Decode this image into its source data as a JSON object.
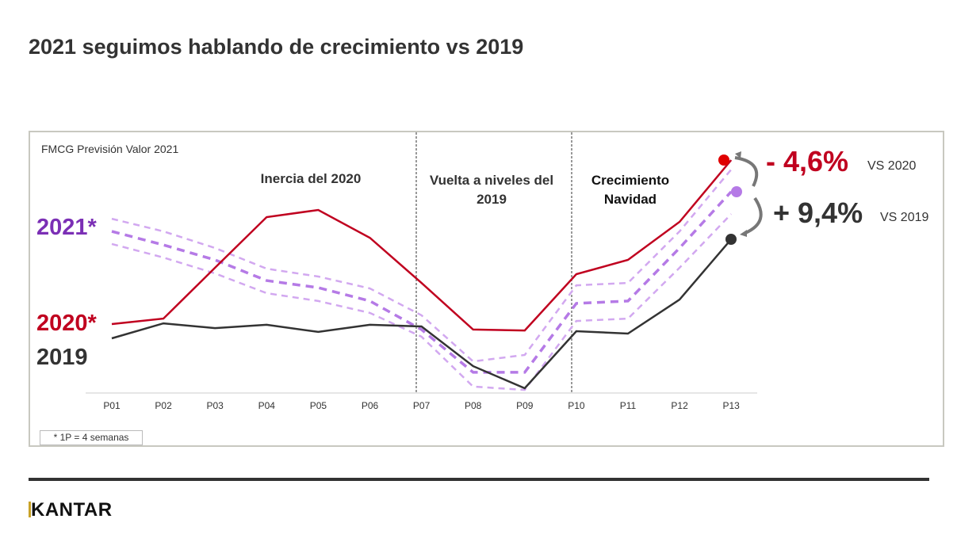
{
  "title": "2021 seguimos hablando de crecimiento vs 2019",
  "footer": {
    "note": "* 1P = 4 semanas",
    "logo": "KANTAR"
  },
  "sections": [
    "Inercia del 2020",
    "Vuelta a niveles del 2019",
    "Crecimiento Navidad"
  ],
  "annotations": {
    "vs2020_value": "- 4,6%",
    "vs2020_label": "VS 2020",
    "vs2019_value": "+ 9,4%",
    "vs2019_label": "VS 2019"
  },
  "colors": {
    "2020": "#c0001f",
    "2019": "#333333",
    "2021": "#b57ae6",
    "2021_label": "#7b2fb5",
    "dot2020": "#e00000"
  },
  "chart_data": {
    "type": "line",
    "title": "FMCG Previsión Valor 2021",
    "categories": [
      "P01",
      "P02",
      "P03",
      "P04",
      "P05",
      "P06",
      "P07",
      "P08",
      "P09",
      "P10",
      "P11",
      "P12",
      "P13"
    ],
    "ylim": [
      0,
      100
    ],
    "grid": false,
    "series": [
      {
        "name": "2020*",
        "style": "solid",
        "values": [
          29,
          31.3,
          52.7,
          74,
          77,
          65.3,
          46.3,
          26.7,
          26.3,
          50,
          56,
          72,
          98
        ]
      },
      {
        "name": "2019",
        "style": "solid",
        "values": [
          23,
          29.3,
          27.3,
          28.7,
          25.7,
          28.7,
          28,
          11.3,
          2,
          26,
          25,
          39.3,
          64.7
        ]
      },
      {
        "name": "2021*",
        "style": "dashed",
        "values": [
          68,
          62.3,
          56,
          47.3,
          44.3,
          38.7,
          26.7,
          8.7,
          8.7,
          37.7,
          38.7,
          61,
          84.7
        ]
      },
      {
        "name": "2021* upper",
        "style": "dashed-light",
        "values": [
          73.3,
          68,
          61,
          52.3,
          49,
          44,
          32.7,
          13.3,
          16,
          45.3,
          46.3,
          68,
          94
        ]
      },
      {
        "name": "2021* lower",
        "style": "dashed-light",
        "values": [
          62.7,
          57,
          50.3,
          42,
          38.7,
          33.7,
          23.7,
          2.7,
          1.3,
          30.3,
          31.3,
          52.7,
          75.3
        ]
      }
    ]
  }
}
